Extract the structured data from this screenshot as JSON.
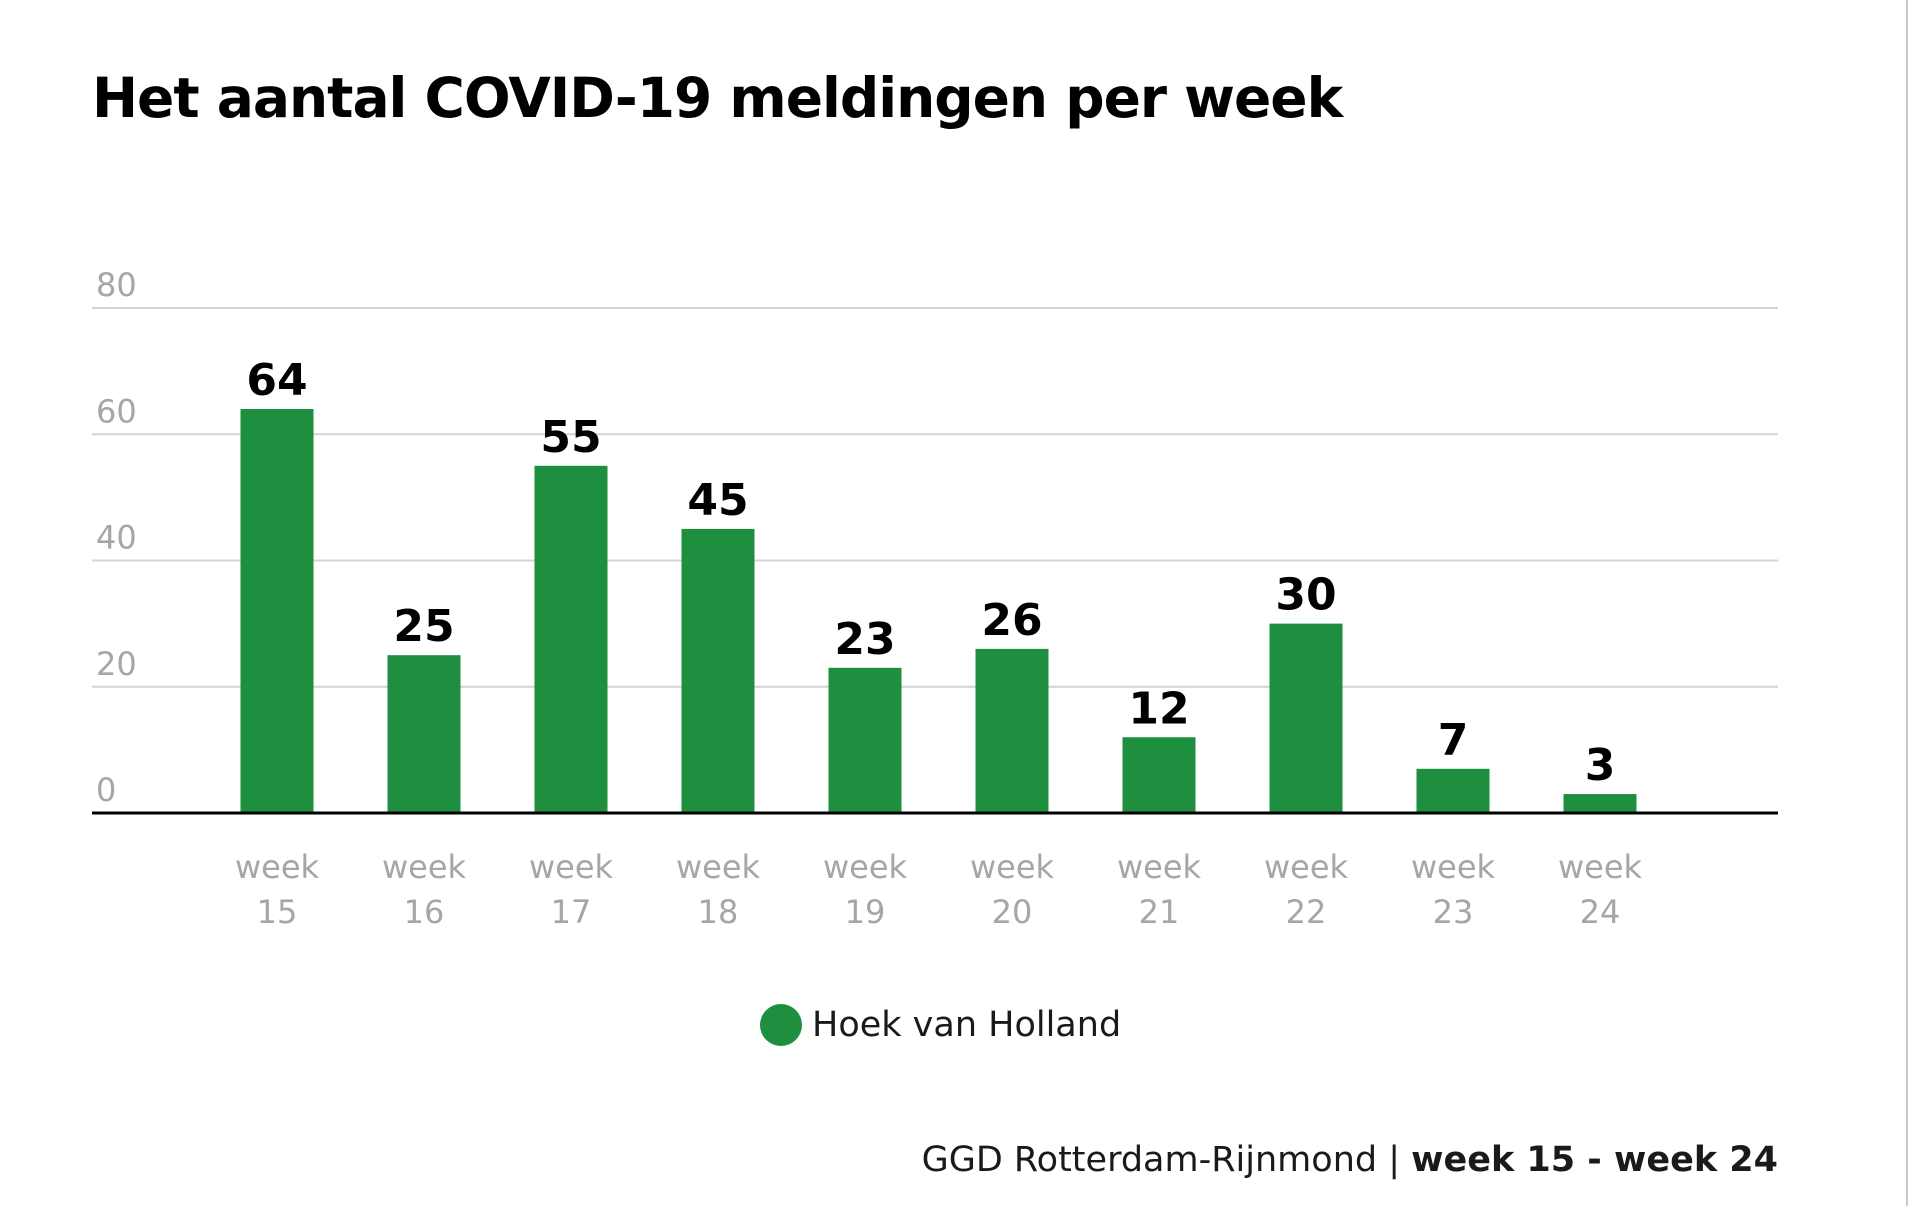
{
  "colors": {
    "bar": "#1e8f3e",
    "grid": "#d4d4d4",
    "axis": "#000000"
  },
  "chart_data": {
    "type": "bar",
    "title": "Het aantal COVID-19 meldingen per week",
    "categories": [
      [
        "week",
        "15"
      ],
      [
        "week",
        "16"
      ],
      [
        "week",
        "17"
      ],
      [
        "week",
        "18"
      ],
      [
        "week",
        "19"
      ],
      [
        "week",
        "20"
      ],
      [
        "week",
        "21"
      ],
      [
        "week",
        "22"
      ],
      [
        "week",
        "23"
      ],
      [
        "week",
        "24"
      ]
    ],
    "series": [
      {
        "name": "Hoek van Holland",
        "values": [
          64,
          25,
          55,
          45,
          23,
          26,
          12,
          30,
          7,
          3
        ]
      }
    ],
    "ylim": [
      0,
      80
    ],
    "yticks": [
      0,
      20,
      40,
      60,
      80
    ],
    "grid": true,
    "legend_position": "bottom-center",
    "data_labels": true
  },
  "footer": {
    "source": "GGD Rotterdam-Rijnmond",
    "separator": " | ",
    "range": "week 15 - week 24"
  }
}
